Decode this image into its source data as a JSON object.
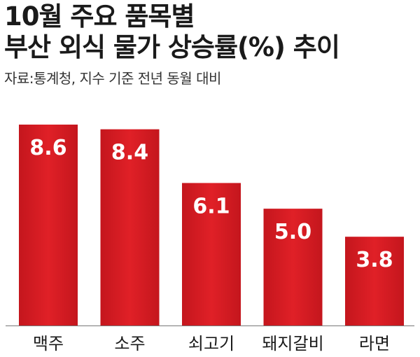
{
  "header": {
    "title_line1": "10월 주요 품목별",
    "title_line2": "부산 외식 물가 상승률(%) 추이",
    "source": "자료:통계청, 지수 기준 전년 동월 대비"
  },
  "colors": {
    "bar": "#e02027",
    "bar_dark": "#c4161d",
    "axis": "#777777"
  },
  "chart_data": {
    "type": "bar",
    "title": "10월 주요 품목별 부산 외식 물가 상승률(%) 추이",
    "categories": [
      "맥주",
      "소주",
      "쇠고기",
      "돼지갈비",
      "라면"
    ],
    "values": [
      8.6,
      8.4,
      6.1,
      5.0,
      3.8
    ],
    "value_labels": [
      "8.6",
      "8.4",
      "6.1",
      "5.0",
      "3.8"
    ],
    "ylim": [
      0,
      8.6
    ],
    "grid": false,
    "legend": "none"
  }
}
